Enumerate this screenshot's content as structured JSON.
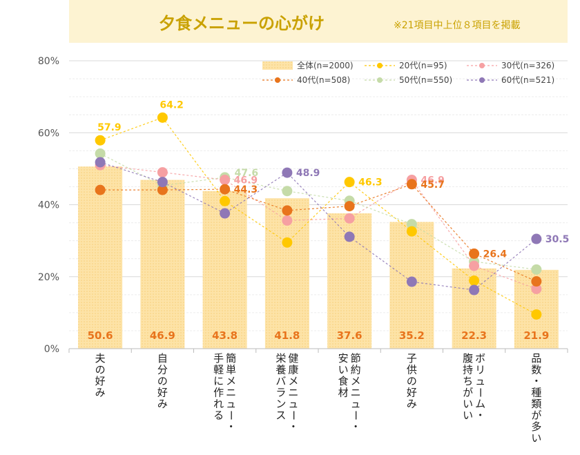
{
  "title": "夕食メニューの心がけ",
  "note": "※21項目中上位８項目を掲載",
  "colors": {
    "bar": "#fde3a7",
    "s20": "#ffc800",
    "s30": "#f6a0a2",
    "s40": "#e8741c",
    "s50": "#c5dba8",
    "s60": "#8f78b6"
  },
  "chart_data": {
    "type": "bar",
    "ylim": [
      0,
      80
    ],
    "yticks": [
      0,
      20,
      40,
      60,
      80
    ],
    "yticklabels": [
      "0%",
      "20%",
      "40%",
      "60%",
      "80%"
    ],
    "grid": true,
    "legend_position": "top-right",
    "categories": [
      [
        "夫の好み"
      ],
      [
        "自分の好み"
      ],
      [
        "簡単メニュー・",
        "手軽に作れる"
      ],
      [
        "健康メニュー・",
        "栄養バランス"
      ],
      [
        "節約メニュー・",
        "安い食材"
      ],
      [
        "子供の好み"
      ],
      [
        "ボリューム・",
        "腹持ちがいい"
      ],
      [
        "品数・種類が多い"
      ]
    ],
    "bar": {
      "name": "全体(n=2000)",
      "values": [
        50.6,
        46.9,
        43.8,
        41.8,
        37.6,
        35.2,
        22.3,
        21.9
      ],
      "labels": [
        "50.6",
        "46.9",
        "43.8",
        "41.8",
        "37.6",
        "35.2",
        "22.3",
        "21.9"
      ]
    },
    "series": [
      {
        "key": "s20",
        "name": "20代(n=95)",
        "values": [
          57.9,
          64.2,
          41.0,
          29.5,
          46.3,
          32.6,
          18.9,
          9.5
        ]
      },
      {
        "key": "s30",
        "name": "30代(n=326)",
        "values": [
          51.0,
          49.0,
          46.9,
          35.6,
          36.2,
          46.9,
          23.0,
          16.6
        ]
      },
      {
        "key": "s40",
        "name": "40代(n=508)",
        "values": [
          44.1,
          44.1,
          44.3,
          38.4,
          39.6,
          45.7,
          26.4,
          18.7
        ]
      },
      {
        "key": "s50",
        "name": "50代(n=550)",
        "values": [
          54.2,
          45.3,
          47.6,
          43.8,
          41.1,
          34.6,
          24.2,
          22.0
        ]
      },
      {
        "key": "s60",
        "name": "60代(n=521)",
        "values": [
          51.8,
          46.3,
          37.6,
          48.9,
          31.1,
          18.6,
          16.3,
          30.5
        ]
      }
    ],
    "annotations": [
      {
        "series": "s20",
        "index": 0,
        "text": "57.9"
      },
      {
        "series": "s20",
        "index": 1,
        "text": "64.2"
      },
      {
        "series": "s50",
        "index": 2,
        "text": "47.6"
      },
      {
        "series": "s30",
        "index": 2,
        "text": "46.9"
      },
      {
        "series": "s40",
        "index": 2,
        "text": "44.3"
      },
      {
        "series": "s60",
        "index": 3,
        "text": "48.9"
      },
      {
        "series": "s20",
        "index": 4,
        "text": "46.3"
      },
      {
        "series": "s30",
        "index": 5,
        "text": "46.9"
      },
      {
        "series": "s40",
        "index": 5,
        "text": "45.7"
      },
      {
        "series": "s40",
        "index": 6,
        "text": "26.4"
      },
      {
        "series": "s60",
        "index": 7,
        "text": "30.5"
      }
    ]
  }
}
